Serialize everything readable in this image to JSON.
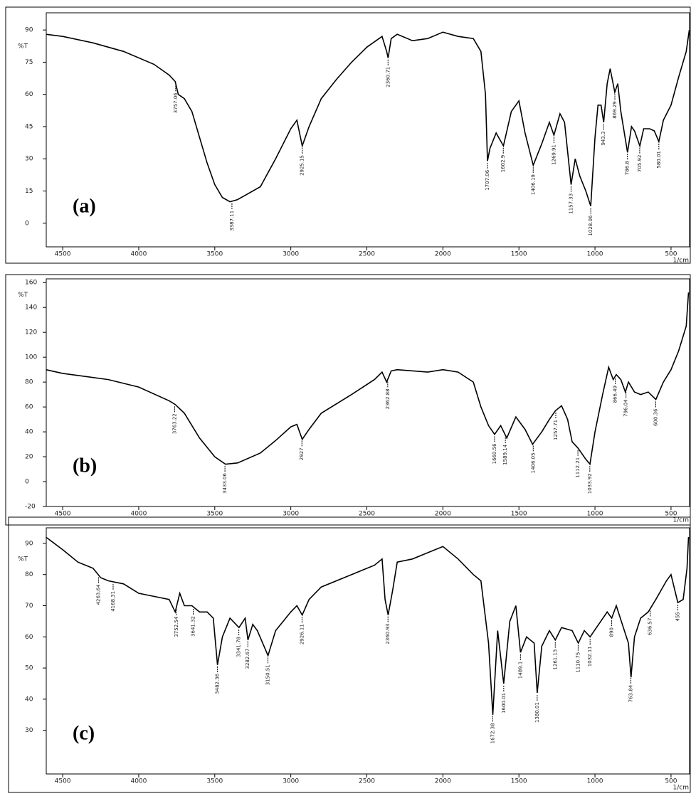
{
  "chart_data": [
    {
      "type": "line",
      "label": "(a)",
      "y_label": "%T",
      "x_unit": "1/cm",
      "xlim": [
        4608,
        378
      ],
      "ylim": [
        -11,
        98
      ],
      "xticks": [
        4500,
        4000,
        3500,
        3000,
        2500,
        2000,
        1500,
        1000,
        500
      ],
      "yticks": [
        0,
        15,
        30,
        45,
        60,
        75,
        90
      ],
      "series": [
        {
          "color": "#000000",
          "x": [
            4610,
            4500,
            4300,
            4100,
            3900,
            3800,
            3760,
            3740,
            3700,
            3650,
            3600,
            3550,
            3500,
            3450,
            3400,
            3350,
            3300,
            3200,
            3100,
            3000,
            2960,
            2925,
            2880,
            2800,
            2700,
            2600,
            2500,
            2400,
            2370,
            2360,
            2340,
            2300,
            2200,
            2100,
            2000,
            1900,
            1800,
            1750,
            1720,
            1707,
            1690,
            1650,
            1602,
            1550,
            1500,
            1460,
            1406,
            1350,
            1300,
            1270,
            1230,
            1200,
            1157,
            1130,
            1100,
            1060,
            1028,
            1000,
            980,
            960,
            943,
            920,
            900,
            870,
            850,
            830,
            786,
            760,
            740,
            705,
            680,
            640,
            610,
            580,
            550,
            500,
            450,
            400,
            380
          ],
          "values": [
            88,
            87,
            84,
            80,
            74,
            69,
            66,
            60,
            58,
            52,
            40,
            28,
            18,
            12,
            10,
            11,
            13,
            17,
            30,
            44,
            48,
            36,
            45,
            58,
            67,
            75,
            82,
            87,
            80,
            77,
            86,
            88,
            85,
            86,
            89,
            87,
            86,
            80,
            60,
            29,
            35,
            42,
            36,
            52,
            57,
            42,
            27,
            37,
            47,
            41,
            51,
            47,
            18,
            30,
            22,
            15,
            8,
            40,
            55,
            55,
            47,
            65,
            72,
            61,
            65,
            52,
            33,
            45,
            43,
            36,
            44,
            44,
            43,
            38,
            48,
            55,
            68,
            80,
            90
          ]
        }
      ],
      "peaks": [
        3757.06,
        3387.11,
        2925.15,
        2360.71,
        1707.06,
        1602.9,
        1406.19,
        1269.91,
        1157.33,
        1028.06,
        943.3,
        869.29,
        786.8,
        705.92,
        580.01
      ]
    },
    {
      "type": "line",
      "label": "(b)",
      "y_label": "%T",
      "x_unit": "1/cm",
      "xlim": [
        4608,
        378
      ],
      "ylim": [
        -20,
        163
      ],
      "xticks": [
        4500,
        4000,
        3500,
        3000,
        2500,
        2000,
        1500,
        1000,
        500
      ],
      "yticks": [
        -20,
        0,
        20,
        40,
        60,
        80,
        100,
        120,
        140,
        160
      ],
      "series": [
        {
          "color": "#000000",
          "x": [
            4610,
            4500,
            4200,
            4000,
            3800,
            3760,
            3700,
            3600,
            3500,
            3430,
            3350,
            3200,
            3100,
            3000,
            2960,
            2925,
            2880,
            2800,
            2600,
            2450,
            2400,
            2370,
            2340,
            2300,
            2100,
            2000,
            1900,
            1800,
            1750,
            1700,
            1660,
            1620,
            1580,
            1520,
            1460,
            1410,
            1350,
            1300,
            1260,
            1220,
            1180,
            1150,
            1112,
            1060,
            1033,
            1000,
            950,
            910,
            880,
            860,
            830,
            800,
            780,
            740,
            700,
            650,
            600,
            550,
            500,
            450,
            400,
            385
          ],
          "values": [
            90,
            87,
            82,
            76,
            65,
            62,
            55,
            35,
            20,
            14,
            15,
            23,
            33,
            44,
            46,
            34,
            42,
            55,
            70,
            82,
            88,
            80,
            89,
            90,
            88,
            90,
            88,
            80,
            60,
            45,
            38,
            45,
            35,
            52,
            42,
            30,
            40,
            50,
            57,
            61,
            50,
            32,
            27,
            18,
            14,
            40,
            70,
            92,
            82,
            86,
            82,
            72,
            80,
            72,
            70,
            72,
            66,
            80,
            90,
            105,
            125,
            152
          ]
        }
      ],
      "peaks": [
        3763.22,
        3433.06,
        2927.0,
        2362.88,
        1660.56,
        1589.14,
        1406.05,
        1257.71,
        1112.21,
        1033.92,
        866.49,
        796.04,
        600.36
      ]
    },
    {
      "type": "line",
      "label": "(c)",
      "y_label": "%T",
      "x_unit": "1/cm",
      "xlim": [
        4608,
        378
      ],
      "ylim": [
        16,
        95
      ],
      "xticks": [
        4500,
        4000,
        3500,
        3000,
        2500,
        2000,
        1500,
        1000,
        500
      ],
      "yticks": [
        30,
        40,
        50,
        60,
        70,
        80,
        90
      ],
      "series": [
        {
          "color": "#000000",
          "x": [
            4610,
            4500,
            4400,
            4300,
            4250,
            4200,
            4100,
            4000,
            3900,
            3800,
            3760,
            3730,
            3700,
            3650,
            3600,
            3550,
            3510,
            3482,
            3450,
            3400,
            3341,
            3300,
            3282,
            3250,
            3220,
            3150,
            3100,
            3050,
            3000,
            2960,
            2925,
            2880,
            2800,
            2600,
            2450,
            2400,
            2380,
            2360,
            2330,
            2300,
            2200,
            2100,
            2000,
            1900,
            1800,
            1750,
            1700,
            1672,
            1640,
            1600,
            1560,
            1520,
            1490,
            1450,
            1400,
            1380,
            1350,
            1300,
            1261,
            1220,
            1150,
            1110,
            1070,
            1032,
            990,
            920,
            890,
            860,
            820,
            780,
            763,
            740,
            700,
            650,
            600,
            530,
            500,
            470,
            455,
            420,
            395,
            385
          ],
          "values": [
            92,
            88,
            84,
            82,
            79,
            78,
            77,
            74,
            73,
            72,
            68,
            74,
            70,
            70,
            68,
            68,
            66,
            51,
            60,
            66,
            63,
            66,
            59,
            64,
            62,
            54,
            62,
            65,
            68,
            70,
            67,
            72,
            76,
            80,
            83,
            85,
            72,
            67,
            75,
            84,
            85,
            87,
            89,
            85,
            80,
            78,
            58,
            35,
            62,
            45,
            65,
            70,
            55,
            60,
            58,
            42,
            57,
            62,
            59,
            63,
            62,
            58,
            62,
            60,
            63,
            68,
            66,
            70,
            64,
            58,
            47,
            60,
            66,
            68,
            72,
            78,
            80,
            74,
            71,
            72,
            82,
            92
          ]
        }
      ],
      "peaks": [
        4263.64,
        4168.31,
        3752.54,
        3641.32,
        3482.36,
        3341.78,
        3282.67,
        3150.51,
        2926.11,
        2360.93,
        1672.38,
        1600.01,
        1489.1,
        1380.01,
        1261.13,
        1110.75,
        1032.11,
        890.0,
        763.84,
        636.57,
        455.0
      ]
    }
  ]
}
